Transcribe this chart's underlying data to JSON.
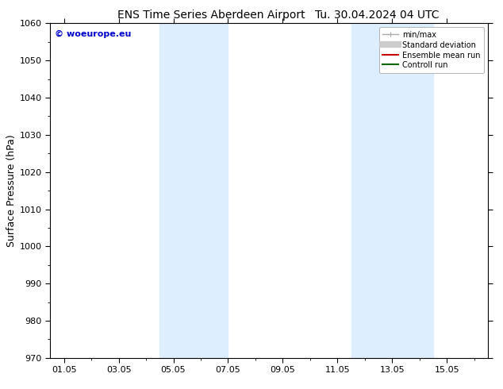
{
  "title_left": "ENS Time Series Aberdeen Airport",
  "title_right": "Tu. 30.04.2024 04 UTC",
  "ylabel": "Surface Pressure (hPa)",
  "ylim": [
    970,
    1060
  ],
  "yticks": [
    970,
    980,
    990,
    1000,
    1010,
    1020,
    1030,
    1040,
    1050,
    1060
  ],
  "xlim": [
    -0.5,
    15.5
  ],
  "xtick_labels": [
    "01.05",
    "03.05",
    "05.05",
    "07.05",
    "09.05",
    "11.05",
    "13.05",
    "15.05"
  ],
  "xtick_positions": [
    0,
    2,
    4,
    6,
    8,
    10,
    12,
    14
  ],
  "shade_bands": [
    {
      "x_start": 3.5,
      "x_end": 4.5
    },
    {
      "x_start": 4.5,
      "x_end": 6.0
    },
    {
      "x_start": 10.5,
      "x_end": 12.0
    },
    {
      "x_start": 12.0,
      "x_end": 13.5
    }
  ],
  "shade_color": "#ddeeff",
  "watermark": "© woeurope.eu",
  "watermark_color": "#0000cc",
  "legend_items": [
    {
      "label": "min/max",
      "color": "#aaaaaa",
      "lw": 1.0,
      "style": "-",
      "type": "line_with_caps"
    },
    {
      "label": "Standard deviation",
      "color": "#cccccc",
      "lw": 6,
      "style": "-",
      "type": "thick"
    },
    {
      "label": "Ensemble mean run",
      "color": "#cc0000",
      "lw": 1.5,
      "style": "-",
      "type": "line"
    },
    {
      "label": "Controll run",
      "color": "#006600",
      "lw": 1.5,
      "style": "-",
      "type": "line"
    }
  ],
  "bg_color": "#ffffff",
  "title_fontsize": 10,
  "axis_label_fontsize": 9,
  "tick_fontsize": 8,
  "watermark_fontsize": 8
}
